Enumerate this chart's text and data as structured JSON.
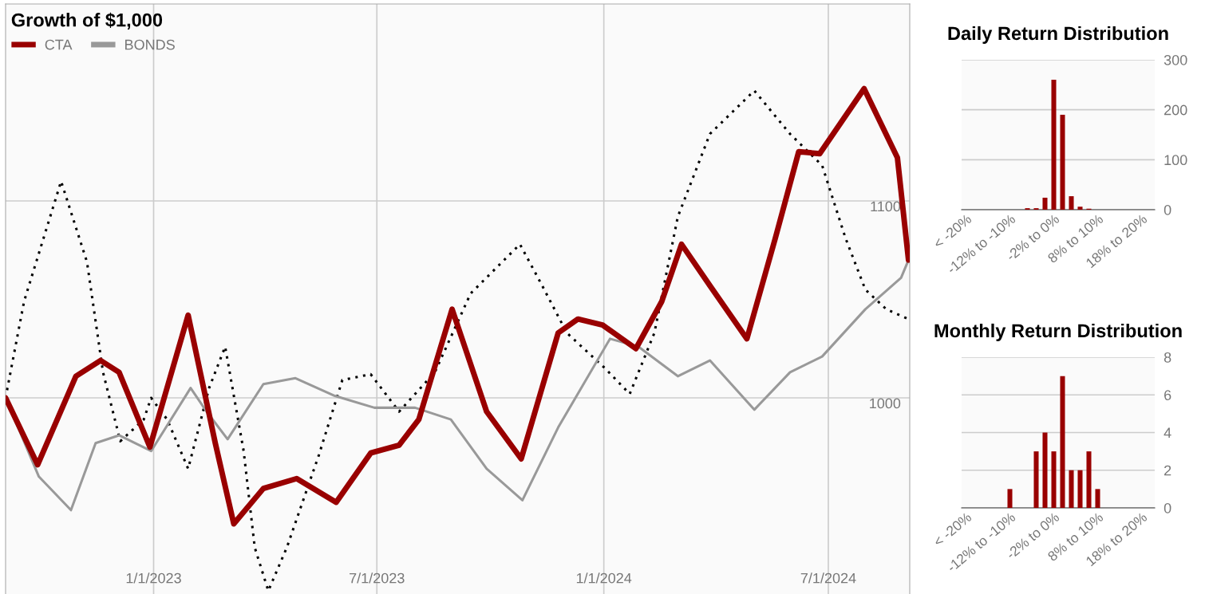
{
  "chart_data": [
    {
      "type": "line",
      "title": "Growth of $1,000",
      "xlim": [
        "2022-09-03",
        "2024-09-05"
      ],
      "ylim": [
        900,
        1200
      ],
      "xticks": [
        {
          "value": "2023-01-01",
          "label": "1/1/2023"
        },
        {
          "value": "2023-07-01",
          "label": "7/1/2023"
        },
        {
          "value": "2024-01-01",
          "label": "1/1/2024"
        },
        {
          "value": "2024-07-01",
          "label": "7/1/2024"
        }
      ],
      "yticks": [
        1000,
        1100
      ],
      "grid": true,
      "legend": "top left",
      "series": [
        {
          "name": "CTA",
          "color": "#990000",
          "line_style": "solid",
          "x": [
            "2022-09-03",
            "2022-09-29",
            "2022-10-30",
            "2022-11-19",
            "2022-12-04",
            "2022-12-29",
            "2023-01-29",
            "2023-02-20",
            "2023-03-07",
            "2023-03-31",
            "2023-04-27",
            "2023-05-29",
            "2023-06-26",
            "2023-07-19",
            "2023-08-04",
            "2023-08-31",
            "2023-09-28",
            "2023-10-26",
            "2023-11-25",
            "2023-12-11",
            "2023-12-31",
            "2024-01-27",
            "2024-02-17",
            "2024-03-04",
            "2024-03-27",
            "2024-04-26",
            "2024-05-19",
            "2024-06-07",
            "2024-06-24",
            "2024-07-30",
            "2024-08-26",
            "2024-09-04"
          ],
          "values": [
            1000,
            966,
            1011,
            1019,
            1013,
            975,
            1042,
            977,
            936,
            954,
            959,
            947,
            972,
            976,
            989,
            1045,
            993,
            969,
            1033,
            1040,
            1037,
            1025,
            1049,
            1078,
            1057,
            1030,
            1081,
            1125,
            1124,
            1157,
            1122,
            1070
          ]
        },
        {
          "color": "#000000",
          "line_style": "dotted",
          "x": [
            "2022-09-03",
            "2022-09-18",
            "2022-10-18",
            "2022-11-08",
            "2022-11-21",
            "2022-12-05",
            "2022-12-24",
            "2022-12-30",
            "2023-01-12",
            "2023-01-29",
            "2023-02-15",
            "2023-02-28",
            "2023-03-15",
            "2023-03-24",
            "2023-04-04",
            "2023-04-19",
            "2023-05-15",
            "2023-06-03",
            "2023-06-26",
            "2023-07-19",
            "2023-08-17",
            "2023-09-15",
            "2023-10-25",
            "2023-11-12",
            "2023-12-02",
            "2024-01-02",
            "2024-01-22",
            "2024-02-11",
            "2024-03-01",
            "2024-03-27",
            "2024-05-02",
            "2024-05-31",
            "2024-06-26",
            "2024-07-15",
            "2024-07-31",
            "2024-08-17",
            "2024-09-04"
          ],
          "values": [
            1000,
            1049,
            1110,
            1069,
            1013,
            978,
            989,
            1000,
            989,
            964,
            1005,
            1026,
            973,
            924,
            902,
            924,
            971,
            1009,
            1012,
            993,
            1013,
            1053,
            1078,
            1057,
            1033,
            1015,
            1002,
            1033,
            1092,
            1134,
            1156,
            1134,
            1118,
            1081,
            1055,
            1045,
            1040
          ]
        },
        {
          "name": "BONDS",
          "color": "#999999",
          "line_style": "solid",
          "x": [
            "2022-09-03",
            "2022-09-30",
            "2022-10-26",
            "2022-11-15",
            "2022-12-04",
            "2022-12-30",
            "2023-01-31",
            "2023-02-13",
            "2023-03-02",
            "2023-03-31",
            "2023-04-26",
            "2023-05-28",
            "2023-06-29",
            "2023-08-01",
            "2023-08-30",
            "2023-09-28",
            "2023-10-27",
            "2023-11-25",
            "2024-01-06",
            "2024-01-29",
            "2024-03-01",
            "2024-03-27",
            "2024-05-02",
            "2024-05-31",
            "2024-06-26",
            "2024-07-31",
            "2024-08-29",
            "2024-09-04"
          ],
          "values": [
            1000,
            960,
            943,
            977,
            981,
            973,
            1005,
            993,
            979,
            1007,
            1010,
            1001,
            995,
            995,
            989,
            964,
            948,
            985,
            1030,
            1026,
            1011,
            1019,
            994,
            1013,
            1021,
            1045,
            1061,
            1070
          ]
        }
      ]
    },
    {
      "type": "bar",
      "title": "Daily Return Distribution",
      "categories": [
        "< -20%",
        null,
        null,
        null,
        null,
        "-12% to -10%",
        null,
        null,
        null,
        null,
        "-2% to 0%",
        null,
        null,
        null,
        null,
        "8% to 10%",
        null,
        null,
        null,
        null,
        "18% to 20%",
        null
      ],
      "series": [
        {
          "color": "#990000",
          "values": [
            0,
            0,
            0,
            0,
            0,
            0,
            0,
            3,
            3,
            24,
            260,
            190,
            27,
            6,
            2,
            0,
            0,
            0,
            0,
            0,
            0,
            0
          ]
        }
      ],
      "ylim": [
        0,
        300
      ],
      "yticks": [
        0,
        100,
        200,
        300
      ],
      "grid": "y"
    },
    {
      "type": "bar",
      "title": "Monthly Return Distribution",
      "categories": [
        "< -20%",
        null,
        null,
        null,
        null,
        "-12% to -10%",
        null,
        null,
        null,
        null,
        "-2% to 0%",
        null,
        null,
        null,
        null,
        "8% to 10%",
        null,
        null,
        null,
        null,
        "18% to 20%",
        null
      ],
      "series": [
        {
          "color": "#990000",
          "values": [
            0,
            0,
            0,
            0,
            0,
            1,
            0,
            0,
            3,
            4,
            3,
            7,
            2,
            2,
            3,
            1,
            0,
            0,
            0,
            0,
            0,
            0
          ]
        }
      ],
      "ylim": [
        0,
        8
      ],
      "yticks": [
        0,
        2,
        4,
        6,
        8
      ],
      "grid": "y"
    }
  ]
}
